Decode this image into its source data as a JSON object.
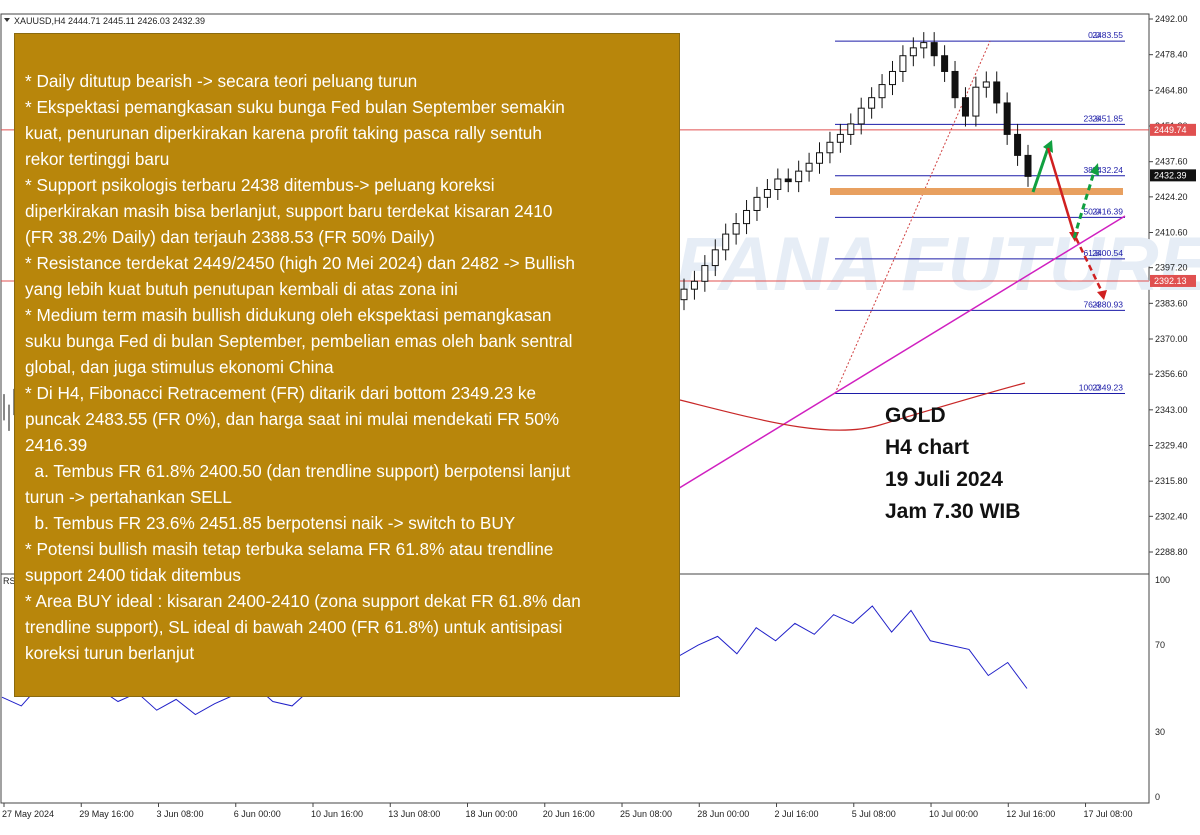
{
  "symbol_header": "XAUUSD,H4  2444.71 2445.11 2426.03 2432.39",
  "rsi_label": "RS",
  "watermark": "RIFANA FUTURES",
  "colors": {
    "analysis_box": "#b8860b",
    "fib_line": "#1c1ca8",
    "red_level": "#e05050",
    "trendline": "#d020c0",
    "moving_average": "#c82828",
    "rsi_line": "#2020c8",
    "support_zone": "#e8a060",
    "arrow_up": "#10a040",
    "arrow_down": "#d02020"
  },
  "price_axis": [
    "2492.00",
    "2478.40",
    "2464.80",
    "2451.20",
    "2437.60",
    "2424.20",
    "2410.60",
    "2397.20",
    "2383.60",
    "2370.00",
    "2356.60",
    "2343.00",
    "2329.40",
    "2315.80",
    "2302.40",
    "2288.80"
  ],
  "price_labels": [
    {
      "value": "2449.74",
      "kind": "red"
    },
    {
      "value": "2432.39",
      "kind": "current"
    },
    {
      "value": "2392.13",
      "kind": "red"
    }
  ],
  "fib_levels": [
    {
      "label": "0.0",
      "value": "2483.55",
      "price": 2483.55
    },
    {
      "label": "23.6",
      "value": "2451.85",
      "price": 2451.85
    },
    {
      "label": "38.2",
      "value": "2432.24",
      "price": 2432.24
    },
    {
      "label": "50.0",
      "value": "2416.39",
      "price": 2416.39
    },
    {
      "label": "61.8",
      "value": "2400.54",
      "price": 2400.54
    },
    {
      "label": "76.4",
      "value": "2380.93",
      "price": 2380.93
    },
    {
      "label": "100.0",
      "value": "2349.23",
      "price": 2349.23
    }
  ],
  "rsi_axis": [
    "100",
    "70",
    "30",
    "0"
  ],
  "time_axis": [
    "27 May 2024",
    "29 May 16:00",
    "3 Jun 08:00",
    "6 Jun 00:00",
    "10 Jun 16:00",
    "13 Jun 08:00",
    "18 Jun 00:00",
    "20 Jun 16:00",
    "25 Jun 08:00",
    "28 Jun 00:00",
    "2 Jul 16:00",
    "5 Jul 08:00",
    "10 Jul 00:00",
    "12 Jul 16:00",
    "17 Jul 08:00"
  ],
  "analysis_lines": [
    "* Daily ditutup bearish -> secara teori peluang turun",
    "* Ekspektasi pemangkasan suku bunga Fed bulan September semakin",
    "kuat, penurunan diperkirakan karena profit taking pasca rally sentuh",
    "rekor tertinggi baru",
    "* Support psikologis terbaru 2438 ditembus-> peluang koreksi",
    "diperkirakan masih bisa berlanjut, support baru terdekat kisaran 2410",
    "(FR 38.2% Daily) dan terjauh 2388.53 (FR 50% Daily)",
    "* Resistance terdekat 2449/2450 (high 20 Mei 2024) dan 2482 -> Bullish",
    "yang lebih kuat butuh penutupan kembali di atas zona ini",
    "* Medium term masih bullish didukung oleh ekspektasi pemangkasan",
    "suku bunga Fed di bulan September, pembelian emas oleh bank sentral",
    "global, dan juga stimulus ekonomi China",
    "* Di H4, Fibonacci Retracement (FR) ditarik dari bottom 2349.23 ke",
    "puncak 2483.55 (FR 0%), dan harga saat ini mulai mendekati FR 50%",
    "2416.39",
    "  a. Tembus FR 61.8% 2400.50 (dan trendline support) berpotensi lanjut",
    "turun -> pertahankan SELL",
    "  b. Tembus FR 23.6% 2451.85 berpotensi naik -> switch to BUY",
    "* Potensi bullish masih tetap terbuka selama FR 61.8% atau trendline",
    "support 2400 tidak ditembus",
    "* Area BUY ideal : kisaran 2400-2410 (zona support dekat FR 61.8% dan",
    "trendline support), SL ideal di bawah 2400 (FR 61.8%) untuk antisipasi",
    "koreksi turun berlanjut"
  ],
  "caption_lines": [
    "GOLD",
    "H4 chart",
    "19 Juli 2024",
    "Jam 7.30 WIB"
  ],
  "chart_data": {
    "type": "line",
    "series": [
      {
        "values": [
          2389,
          2392,
          2398,
          2404,
          2410,
          2414,
          2419,
          2424,
          2427,
          2431,
          2430,
          2434,
          2437,
          2441,
          2445,
          2448,
          2452,
          2458,
          2462,
          2467,
          2472,
          2478,
          2481,
          2483,
          2478,
          2472,
          2462,
          2455,
          2466,
          2468,
          2460,
          2448,
          2440,
          2432
        ]
      }
    ],
    "ylim": [
      2280,
      2494
    ],
    "rsi": {
      "ylim": [
        0,
        100
      ],
      "values": [
        46,
        42,
        52,
        55,
        48,
        50,
        44,
        48,
        40,
        45,
        38,
        43,
        47,
        52,
        44,
        42,
        50,
        54,
        48,
        56,
        52,
        58,
        60,
        52,
        50,
        60,
        55,
        62,
        66,
        70,
        68,
        62,
        68,
        60,
        72,
        65,
        70,
        74,
        66,
        78,
        72,
        80,
        75,
        84,
        80,
        88,
        76,
        86,
        72,
        70,
        68,
        56,
        62,
        50
      ]
    }
  }
}
